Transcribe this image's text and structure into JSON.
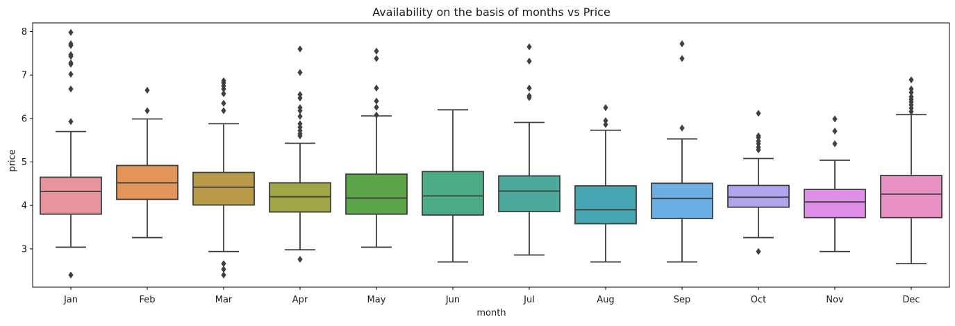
{
  "chart_data": {
    "type": "box",
    "title": "Availability on the basis of months vs Price",
    "xlabel": "month",
    "ylabel": "price",
    "categories": [
      "Jan",
      "Feb",
      "Mar",
      "Apr",
      "May",
      "Jun",
      "Jul",
      "Aug",
      "Sep",
      "Oct",
      "Nov",
      "Dec"
    ],
    "ylim": [
      2.12,
      8.2
    ],
    "yticks": [
      3,
      4,
      5,
      6,
      7,
      8
    ],
    "grid": false,
    "boxes": [
      {
        "category": "Jan",
        "whisker_low": 3.04,
        "q1": 3.8,
        "median": 4.32,
        "q3": 4.65,
        "whisker_high": 5.7,
        "outliers": [
          2.4,
          5.93,
          6.68,
          7.02,
          7.25,
          7.28,
          7.43,
          7.47,
          7.68,
          7.72,
          7.98
        ],
        "color": "#e8949c"
      },
      {
        "category": "Feb",
        "whisker_low": 3.26,
        "q1": 4.14,
        "median": 4.52,
        "q3": 4.92,
        "whisker_high": 5.99,
        "outliers": [
          6.18,
          6.65
        ],
        "color": "#e4955a"
      },
      {
        "category": "Mar",
        "whisker_low": 2.94,
        "q1": 4.01,
        "median": 4.42,
        "q3": 4.76,
        "whisker_high": 5.88,
        "outliers": [
          2.4,
          2.53,
          2.66,
          6.18,
          6.35,
          6.57,
          6.68,
          6.75,
          6.82,
          6.87
        ],
        "color": "#b99a48"
      },
      {
        "category": "Apr",
        "whisker_low": 2.98,
        "q1": 3.85,
        "median": 4.2,
        "q3": 4.52,
        "whisker_high": 5.43,
        "outliers": [
          2.76,
          5.6,
          5.65,
          5.72,
          5.8,
          5.88,
          6.05,
          6.18,
          6.25,
          6.47,
          6.55,
          7.06,
          7.6
        ],
        "color": "#a0a546"
      },
      {
        "category": "May",
        "whisker_low": 3.04,
        "q1": 3.8,
        "median": 4.17,
        "q3": 4.72,
        "whisker_high": 6.06,
        "outliers": [
          6.08,
          6.26,
          6.4,
          6.7,
          7.38,
          7.55
        ],
        "color": "#5ba548"
      },
      {
        "category": "Jun",
        "whisker_low": 2.7,
        "q1": 3.78,
        "median": 4.22,
        "q3": 4.78,
        "whisker_high": 6.2,
        "outliers": [],
        "color": "#4aab84"
      },
      {
        "category": "Jul",
        "whisker_low": 2.86,
        "q1": 3.86,
        "median": 4.33,
        "q3": 4.68,
        "whisker_high": 5.91,
        "outliers": [
          6.48,
          6.52,
          6.7,
          7.32,
          7.65
        ],
        "color": "#4aa99c"
      },
      {
        "category": "Aug",
        "whisker_low": 2.7,
        "q1": 3.58,
        "median": 3.9,
        "q3": 4.45,
        "whisker_high": 5.73,
        "outliers": [
          5.86,
          5.95,
          6.25
        ],
        "color": "#47a6b3"
      },
      {
        "category": "Sep",
        "whisker_low": 2.7,
        "q1": 3.7,
        "median": 4.16,
        "q3": 4.51,
        "whisker_high": 5.53,
        "outliers": [
          5.78,
          7.38,
          7.72
        ],
        "color": "#6aaee3"
      },
      {
        "category": "Oct",
        "whisker_low": 3.26,
        "q1": 3.96,
        "median": 4.19,
        "q3": 4.46,
        "whisker_high": 5.08,
        "outliers": [
          2.94,
          5.28,
          5.34,
          5.42,
          5.48,
          5.56,
          5.6,
          6.12
        ],
        "color": "#b2a4ec"
      },
      {
        "category": "Nov",
        "whisker_low": 2.94,
        "q1": 3.72,
        "median": 4.08,
        "q3": 4.37,
        "whisker_high": 5.04,
        "outliers": [
          5.42,
          5.71,
          5.99
        ],
        "color": "#df8ee8"
      },
      {
        "category": "Dec",
        "whisker_low": 2.66,
        "q1": 3.72,
        "median": 4.26,
        "q3": 4.69,
        "whisker_high": 6.09,
        "outliers": [
          6.16,
          6.24,
          6.31,
          6.38,
          6.44,
          6.5,
          6.6,
          6.68,
          6.89
        ],
        "color": "#e88fc4"
      }
    ]
  }
}
